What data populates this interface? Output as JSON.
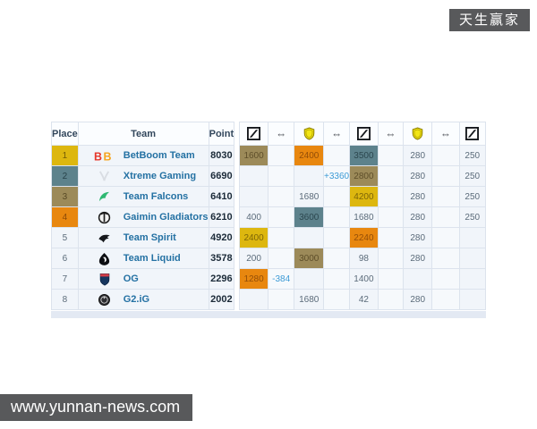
{
  "overlays": {
    "badge_text": "天生赢家",
    "site_watermark": "www.yunnan-news.com"
  },
  "colors": {
    "gold": "#ddb70f",
    "teal": "#5d828c",
    "khaki": "#9c8a59",
    "orange": "#e8870f",
    "delta_blue": "#3d9bd6"
  },
  "table": {
    "headers": {
      "place": "Place",
      "team": "Team",
      "point": "Point"
    },
    "event_header": [
      {
        "icon": "esl-square-icon"
      },
      {
        "icon": "swap-arrows-icon",
        "glyph": "⇔"
      },
      {
        "icon": "shield-icon"
      },
      {
        "icon": "swap-arrows-icon",
        "glyph": "⇔"
      },
      {
        "icon": "esl-square-icon"
      },
      {
        "icon": "swap-arrows-icon",
        "glyph": "⇔"
      },
      {
        "icon": "shield-icon"
      },
      {
        "icon": "swap-arrows-icon",
        "glyph": "⇔"
      },
      {
        "icon": "esl-square-icon"
      }
    ],
    "rows": [
      {
        "place": "1",
        "place_color": "gold",
        "team": "BetBoom Team",
        "logo": "betboom",
        "point": "8030",
        "cells": [
          {
            "text": "1600",
            "color": "khaki"
          },
          {},
          {
            "text": "2400",
            "color": "orange"
          },
          {},
          {
            "text": "3500",
            "color": "teal"
          },
          {},
          {
            "text": "280"
          },
          {},
          {
            "text": "250"
          }
        ]
      },
      {
        "place": "2",
        "place_color": "teal",
        "team": "Xtreme Gaming",
        "logo": "xtreme",
        "point": "6690",
        "cells": [
          {},
          {},
          {},
          {
            "text": "+3360",
            "color": "delta"
          },
          {
            "text": "2800",
            "color": "khaki"
          },
          {},
          {
            "text": "280"
          },
          {},
          {
            "text": "250"
          }
        ]
      },
      {
        "place": "3",
        "place_color": "khaki",
        "team": "Team Falcons",
        "logo": "falcons",
        "point": "6410",
        "cells": [
          {},
          {},
          {
            "text": "1680"
          },
          {},
          {
            "text": "4200",
            "color": "gold"
          },
          {},
          {
            "text": "280"
          },
          {},
          {
            "text": "250"
          }
        ]
      },
      {
        "place": "4",
        "place_color": "orange",
        "team": "Gaimin Gladiators",
        "logo": "gaimin",
        "point": "6210",
        "cells": [
          {
            "text": "400"
          },
          {},
          {
            "text": "3600",
            "color": "teal"
          },
          {},
          {
            "text": "1680"
          },
          {},
          {
            "text": "280"
          },
          {},
          {
            "text": "250"
          }
        ]
      },
      {
        "place": "5",
        "place_color": "",
        "team": "Team Spirit",
        "logo": "spirit",
        "point": "4920",
        "cells": [
          {
            "text": "2400",
            "color": "gold"
          },
          {},
          {},
          {},
          {
            "text": "2240",
            "color": "orange"
          },
          {},
          {
            "text": "280"
          },
          {},
          {}
        ]
      },
      {
        "place": "6",
        "place_color": "",
        "team": "Team Liquid",
        "logo": "liquid",
        "point": "3578",
        "cells": [
          {
            "text": "200"
          },
          {},
          {
            "text": "3000",
            "color": "khaki"
          },
          {},
          {
            "text": "98"
          },
          {},
          {
            "text": "280"
          },
          {},
          {}
        ]
      },
      {
        "place": "7",
        "place_color": "",
        "team": "OG",
        "logo": "og",
        "point": "2296",
        "cells": [
          {
            "text": "1280",
            "color": "orange"
          },
          {
            "text": "-384",
            "color": "delta"
          },
          {},
          {},
          {
            "text": "1400"
          },
          {},
          {},
          {},
          {}
        ]
      },
      {
        "place": "8",
        "place_color": "",
        "team": "G2.iG",
        "logo": "g2ig",
        "point": "2002",
        "cells": [
          {},
          {},
          {
            "text": "1680"
          },
          {},
          {
            "text": "42"
          },
          {},
          {
            "text": "280"
          },
          {},
          {}
        ]
      }
    ]
  }
}
